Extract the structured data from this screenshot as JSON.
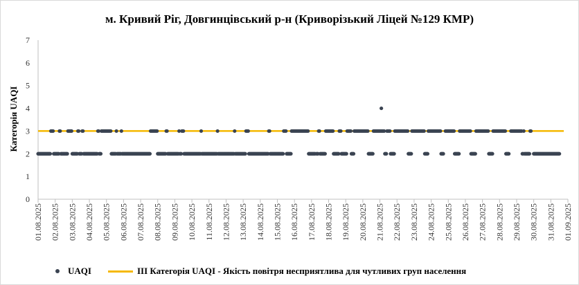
{
  "chart_data": {
    "type": "scatter",
    "title": "м. Кривий Ріг, Довгинцівський р-н (Криворізький Ліцей №129 КМР)",
    "ylabel": "Категорія UAQI",
    "xlabel": "",
    "ylim": [
      0,
      7
    ],
    "yticks": [
      "0",
      "1",
      "2",
      "3",
      "4",
      "5",
      "6",
      "7"
    ],
    "xtick_labels": [
      "01.08.2025",
      "02.08.2025",
      "03.08.2025",
      "04.08.2025",
      "05.08.2025",
      "06.08.2025",
      "07.08.2025",
      "08.08.2025",
      "09.08.2025",
      "10.08.2025",
      "11.08.2025",
      "12.08.2025",
      "13.08.2025",
      "14.08.2025",
      "15.08.2025",
      "16.08.2025",
      "17.08.2025",
      "18.08.2025",
      "19.08.2025",
      "20.08.2025",
      "21.08.2025",
      "22.08.2025",
      "23.08.2025",
      "24.08.2025",
      "25.08.2025",
      "26.08.2025",
      "27.08.2025",
      "28.08.2025",
      "29.08.2025",
      "30.08.2025",
      "31.08.2025",
      "01.09.2025"
    ],
    "grid": false,
    "legend_position": "bottom",
    "series": [
      {
        "name": "UAQI",
        "kind": "points",
        "color": "#3b4452",
        "segments_value_3": [
          [
            "01.08.2025 18:00",
            "01.08.2025 21:00"
          ],
          [
            "02.08.2025 06:00",
            "02.08.2025 07:00"
          ],
          [
            "02.08.2025 18:00",
            "02.08.2025 23:00"
          ],
          [
            "03.08.2025 08:00",
            "03.08.2025 09:00"
          ],
          [
            "03.08.2025 14:00",
            "03.08.2025 15:00"
          ],
          [
            "04.08.2025 12:00",
            "04.08.2025 13:00"
          ],
          [
            "04.08.2025 17:00",
            "05.08.2025 06:00"
          ],
          [
            "05.08.2025 14:00",
            "05.08.2025 14:00"
          ],
          [
            "05.08.2025 21:00",
            "05.08.2025 21:00"
          ],
          [
            "07.08.2025 14:00",
            "07.08.2025 23:00"
          ],
          [
            "08.08.2025 12:00",
            "08.08.2025 13:00"
          ],
          [
            "09.08.2025 06:00",
            "09.08.2025 06:00"
          ],
          [
            "09.08.2025 10:00",
            "09.08.2025 12:00"
          ],
          [
            "10.08.2025 13:00",
            "10.08.2025 13:00"
          ],
          [
            "11.08.2025 12:00",
            "11.08.2025 12:00"
          ],
          [
            "12.08.2025 12:00",
            "12.08.2025 12:00"
          ],
          [
            "13.08.2025 04:00",
            "13.08.2025 07:00"
          ],
          [
            "14.08.2025 12:00",
            "14.08.2025 13:00"
          ],
          [
            "15.08.2025 09:00",
            "15.08.2025 12:00"
          ],
          [
            "15.08.2025 20:00",
            "16.08.2025 19:00"
          ],
          [
            "17.08.2025 10:00",
            "17.08.2025 11:00"
          ],
          [
            "17.08.2025 20:00",
            "18.08.2025 06:00"
          ],
          [
            "18.08.2025 15:00",
            "18.08.2025 17:00"
          ],
          [
            "19.08.2025 02:00",
            "19.08.2025 07:00"
          ],
          [
            "19.08.2025 12:00",
            "20.08.2025 07:00"
          ],
          [
            "20.08.2025 15:00",
            "21.08.2025 06:00"
          ],
          [
            "21.08.2025 10:00",
            "21.08.2025 14:00"
          ],
          [
            "21.08.2025 21:00",
            "22.08.2025 15:00"
          ],
          [
            "22.08.2025 21:00",
            "23.08.2025 14:00"
          ],
          [
            "23.08.2025 20:00",
            "24.08.2025 13:00"
          ],
          [
            "24.08.2025 20:00",
            "25.08.2025 08:00"
          ],
          [
            "25.08.2025 16:00",
            "26.08.2025 07:00"
          ],
          [
            "26.08.2025 15:00",
            "27.08.2025 08:00"
          ],
          [
            "27.08.2025 15:00",
            "28.08.2025 08:00"
          ],
          [
            "28.08.2025 16:00",
            "29.08.2025 07:00"
          ],
          [
            "29.08.2025 10:00",
            "29.08.2025 10:00"
          ],
          [
            "29.08.2025 19:00",
            "29.08.2025 20:00"
          ]
        ],
        "outliers": [
          {
            "x": "21.08.2025 02:00",
            "y": 4
          }
        ],
        "baseline_value": 2,
        "baseline_gaps": [
          [
            "17.08.2025 06:00",
            "17.08.2025 06:00"
          ],
          [
            "17.08.2025 22:00",
            "17.08.2025 23:00"
          ],
          [
            "21.08.2025 13:00",
            "21.08.2025 14:00"
          ],
          [
            "22.08.2025 04:00",
            "22.08.2025 05:00"
          ],
          [
            "23.08.2025 20:00",
            "23.08.2025 23:00"
          ],
          [
            "24.08.2025 18:00",
            "24.08.2025 20:00"
          ],
          [
            "25.08.2025 19:00",
            "25.08.2025 22:00"
          ],
          [
            "26.08.2025 22:00",
            "26.08.2025 23:00"
          ],
          [
            "27.08.2025 16:00",
            "27.08.2025 17:00"
          ],
          [
            "28.08.2025 14:00",
            "28.08.2025 15:00"
          ],
          [
            "29.08.2025 20:00",
            "29.08.2025 23:00"
          ]
        ]
      },
      {
        "name": "ІІІ Категорія UAQI - Якість повітря несприятлива для чутливих груп населення",
        "kind": "line",
        "color": "#f5b800",
        "value": 3
      }
    ]
  }
}
